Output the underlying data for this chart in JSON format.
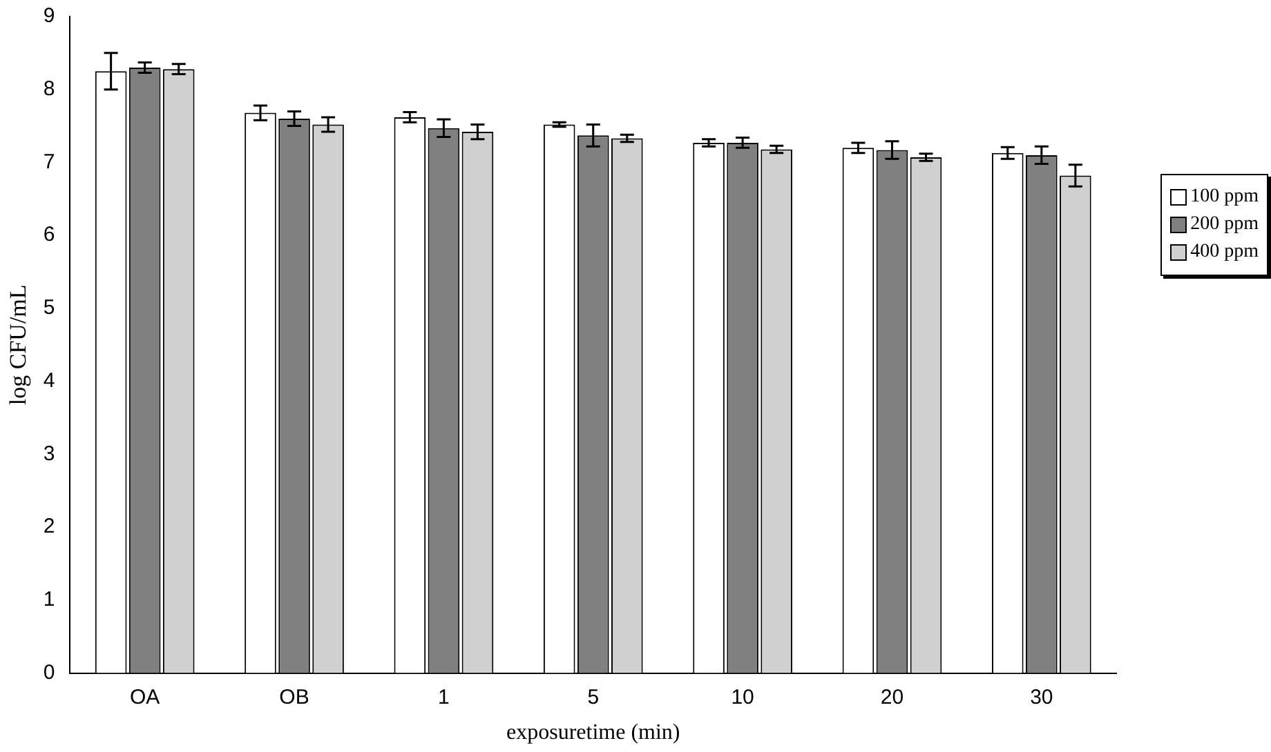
{
  "chart_data": {
    "type": "bar",
    "xlabel": "exposuretime (min)",
    "ylabel": "log CFU/mL",
    "categories": [
      "OA",
      "OB",
      "1",
      "5",
      "10",
      "20",
      "30"
    ],
    "series": [
      {
        "name": "100 ppm",
        "color": "#ffffff",
        "values": [
          8.25,
          7.68,
          7.62,
          7.52,
          7.27,
          7.2,
          7.13
        ],
        "errors": [
          0.25,
          0.1,
          0.07,
          0.03,
          0.05,
          0.07,
          0.08
        ]
      },
      {
        "name": "200 ppm",
        "color": "#808080",
        "values": [
          8.3,
          7.6,
          7.47,
          7.37,
          7.27,
          7.17,
          7.1
        ],
        "errors": [
          0.07,
          0.1,
          0.12,
          0.15,
          0.07,
          0.12,
          0.12
        ]
      },
      {
        "name": "400 ppm",
        "color": "#d0d0d0",
        "values": [
          8.28,
          7.52,
          7.42,
          7.33,
          7.18,
          7.07,
          6.82
        ],
        "errors": [
          0.07,
          0.1,
          0.1,
          0.05,
          0.05,
          0.05,
          0.15
        ]
      }
    ],
    "ylim": [
      0,
      9
    ],
    "yticks": [
      0,
      1,
      2,
      3,
      4,
      5,
      6,
      7,
      8,
      9
    ],
    "grid": false,
    "legend": "right"
  }
}
